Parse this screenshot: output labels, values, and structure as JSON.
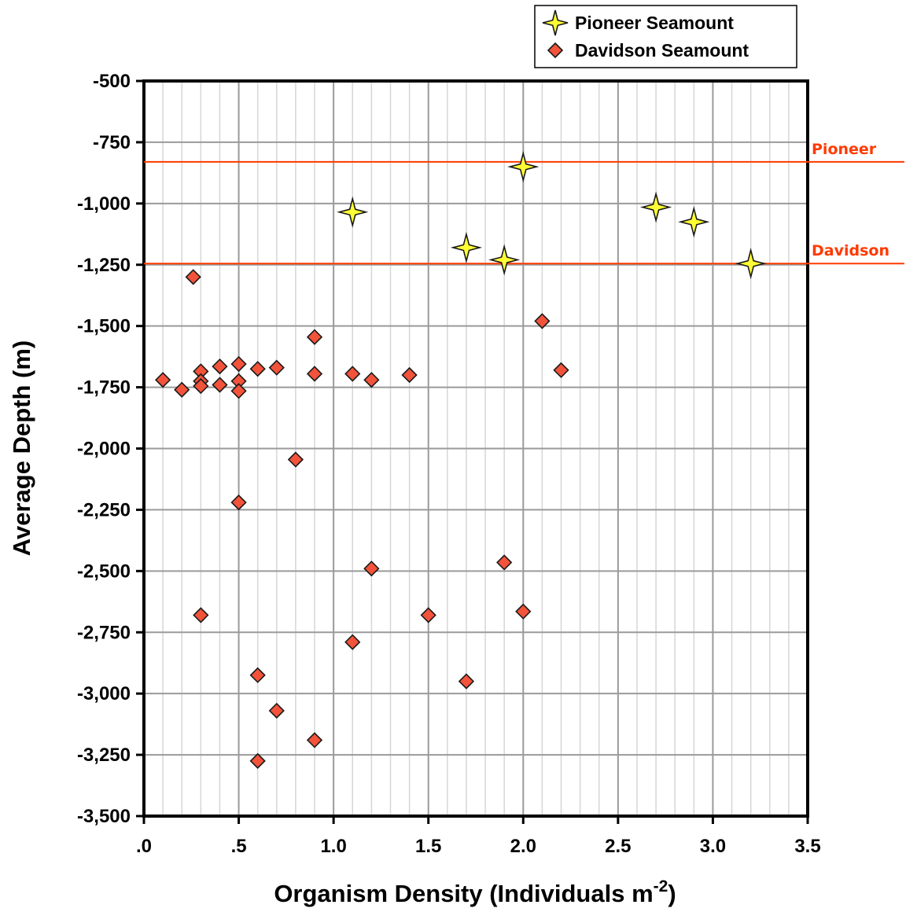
{
  "chart_data": {
    "type": "scatter",
    "xlabel": "Organism Density (Individuals m",
    "xlabel_superscript": "-2",
    "xlabel_suffix": ")",
    "ylabel": "Average Depth (m)",
    "xlim": [
      0,
      3.5
    ],
    "ylim": [
      -3500,
      -500
    ],
    "x_ticks": [
      {
        "value": 0,
        "label": ".0"
      },
      {
        "value": 0.5,
        "label": ".5"
      },
      {
        "value": 1.0,
        "label": "1.0"
      },
      {
        "value": 1.5,
        "label": "1.5"
      },
      {
        "value": 2.0,
        "label": "2.0"
      },
      {
        "value": 2.5,
        "label": "2.5"
      },
      {
        "value": 3.0,
        "label": "3.0"
      },
      {
        "value": 3.5,
        "label": "3.5"
      }
    ],
    "y_ticks": [
      {
        "value": -500,
        "label": "-500"
      },
      {
        "value": -750,
        "label": "-750"
      },
      {
        "value": -1000,
        "label": "-1,000"
      },
      {
        "value": -1250,
        "label": "-1,250"
      },
      {
        "value": -1500,
        "label": "-1,500"
      },
      {
        "value": -1750,
        "label": "-1,750"
      },
      {
        "value": -2000,
        "label": "-2,000"
      },
      {
        "value": -2250,
        "label": "-2,250"
      },
      {
        "value": -2500,
        "label": "-2,500"
      },
      {
        "value": -2750,
        "label": "-2,750"
      },
      {
        "value": -3000,
        "label": "-3,000"
      },
      {
        "value": -3250,
        "label": "-3,250"
      },
      {
        "value": -3500,
        "label": "-3,500"
      }
    ],
    "x_minor_step": 0.1,
    "grid": true,
    "legend_position": "top-right",
    "series": [
      {
        "name": "Pioneer Seamount",
        "marker": "star",
        "color": "#ffff33",
        "points": [
          {
            "x": 1.1,
            "y": -1035
          },
          {
            "x": 1.7,
            "y": -1180
          },
          {
            "x": 1.9,
            "y": -1230
          },
          {
            "x": 2.0,
            "y": -850
          },
          {
            "x": 2.7,
            "y": -1015
          },
          {
            "x": 2.9,
            "y": -1075
          },
          {
            "x": 3.2,
            "y": -1245
          }
        ]
      },
      {
        "name": "Davidson Seamount",
        "marker": "diamond",
        "color": "#f2533a",
        "points": [
          {
            "x": 0.1,
            "y": -1720
          },
          {
            "x": 0.2,
            "y": -1760
          },
          {
            "x": 0.26,
            "y": -1300
          },
          {
            "x": 0.3,
            "y": -1685
          },
          {
            "x": 0.3,
            "y": -1725
          },
          {
            "x": 0.3,
            "y": -1745
          },
          {
            "x": 0.3,
            "y": -2680
          },
          {
            "x": 0.4,
            "y": -1665
          },
          {
            "x": 0.4,
            "y": -1740
          },
          {
            "x": 0.5,
            "y": -1655
          },
          {
            "x": 0.5,
            "y": -1725
          },
          {
            "x": 0.5,
            "y": -1765
          },
          {
            "x": 0.5,
            "y": -2220
          },
          {
            "x": 0.6,
            "y": -1675
          },
          {
            "x": 0.6,
            "y": -2925
          },
          {
            "x": 0.6,
            "y": -3275
          },
          {
            "x": 0.7,
            "y": -1670
          },
          {
            "x": 0.7,
            "y": -3070
          },
          {
            "x": 0.8,
            "y": -2045
          },
          {
            "x": 0.9,
            "y": -1545
          },
          {
            "x": 0.9,
            "y": -1695
          },
          {
            "x": 0.9,
            "y": -3190
          },
          {
            "x": 1.1,
            "y": -1695
          },
          {
            "x": 1.1,
            "y": -2790
          },
          {
            "x": 1.2,
            "y": -1720
          },
          {
            "x": 1.2,
            "y": -2490
          },
          {
            "x": 1.4,
            "y": -1700
          },
          {
            "x": 1.5,
            "y": -2680
          },
          {
            "x": 1.7,
            "y": -2950
          },
          {
            "x": 1.9,
            "y": -2465
          },
          {
            "x": 2.0,
            "y": -2665
          },
          {
            "x": 2.1,
            "y": -1480
          },
          {
            "x": 2.2,
            "y": -1680
          }
        ]
      }
    ],
    "reference_lines": [
      {
        "label": "Pioneer",
        "y": -830,
        "color": "#ff3a00"
      },
      {
        "label": "Davidson",
        "y": -1245,
        "color": "#ff3a00"
      }
    ]
  },
  "colors": {
    "axis": "#000000",
    "major_grid": "#9a9a9a",
    "minor_grid": "#d6d6d6",
    "marker_stroke": "#1a1a1a"
  }
}
